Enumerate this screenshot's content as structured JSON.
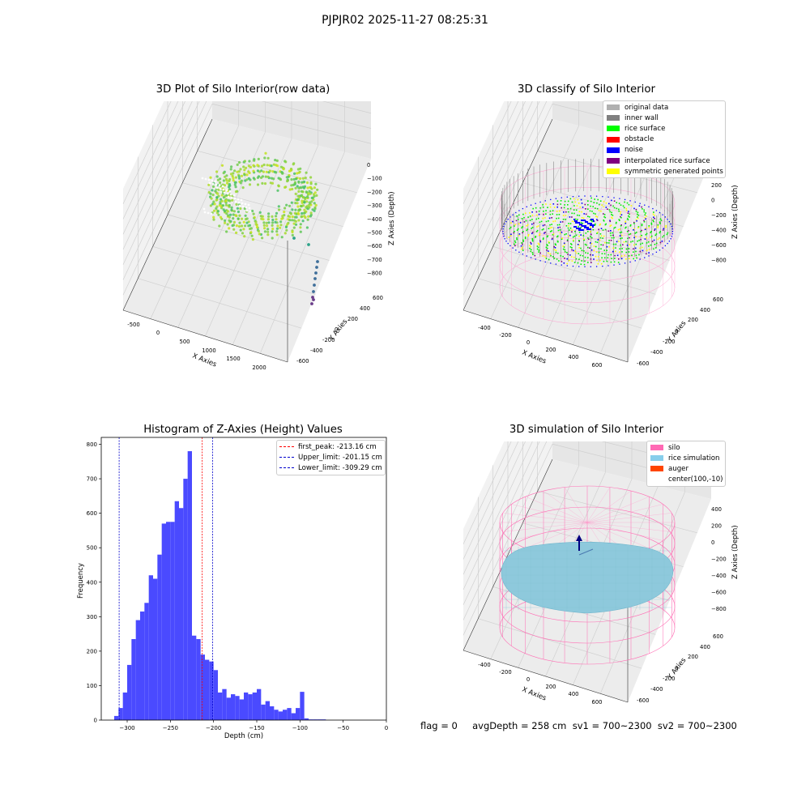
{
  "figure": {
    "suptitle": "PJPJR02 2025-11-27 08:25:31",
    "footer": "flag = 0     avgDepth = 258 cm  sv1 = 700~2300  sv2 = 700~2300"
  },
  "panels": {
    "raw": {
      "title": "3D Plot of Silo Interior(row data)",
      "xlabel": "X Axies",
      "ylabel": "Y Axies",
      "zlabel": "Z Axies (Depth)",
      "x_ticks": [
        "-500",
        "0",
        "500",
        "1000",
        "1500",
        "2000"
      ],
      "y_ticks": [
        "-600",
        "-400",
        "-200",
        "0",
        "200",
        "400",
        "600"
      ],
      "z_ticks": [
        "0",
        "−100",
        "−200",
        "−300",
        "−400",
        "−500",
        "−600",
        "−700",
        "−800"
      ]
    },
    "classify": {
      "title": "3D classify of Silo Interior",
      "xlabel": "X Axies",
      "ylabel": "Y Axies",
      "zlabel": "Z Axies (Depth)",
      "x_ticks": [
        "-400",
        "-200",
        "0",
        "200",
        "400",
        "600"
      ],
      "y_ticks": [
        "-600",
        "-400",
        "-200",
        "0",
        "200",
        "400",
        "600"
      ],
      "z_ticks": [
        "200",
        "0",
        "−200",
        "−400",
        "−600",
        "−800"
      ],
      "legend": [
        {
          "label": "original data",
          "color": "#b0b0b0"
        },
        {
          "label": "inner wall",
          "color": "#808080"
        },
        {
          "label": "rice surface",
          "color": "#00ff00"
        },
        {
          "label": "obstacle",
          "color": "#ff0000"
        },
        {
          "label": "noise",
          "color": "#0000ff"
        },
        {
          "label": "interpolated rice surface",
          "color": "#800080"
        },
        {
          "label": "symmetric generated points",
          "color": "#ffff00"
        }
      ]
    },
    "histogram": {
      "title": "Histogram of Z-Axies (Height) Values",
      "legend": [
        {
          "label": "first_peak: -213.16 cm",
          "color": "#ff0000"
        },
        {
          "label": "Upper_limit: -201.15 cm",
          "color": "#0000cc"
        },
        {
          "label": "Lower_limit: -309.29 cm",
          "color": "#0000cc"
        }
      ]
    },
    "simulation": {
      "title": "3D simulation of Silo Interior",
      "xlabel": "X Axies",
      "ylabel": "Y Axies",
      "zlabel": "Z Axies (Depth)",
      "x_ticks": [
        "-400",
        "-200",
        "0",
        "200",
        "400",
        "600"
      ],
      "y_ticks": [
        "-600",
        "-400",
        "-200",
        "0",
        "200",
        "400",
        "600"
      ],
      "z_ticks": [
        "400",
        "200",
        "0",
        "−200",
        "−400",
        "−600",
        "−800"
      ],
      "legend": [
        {
          "label": "silo",
          "color": "#ff69b4"
        },
        {
          "label": "rice simulation",
          "color": "#87ceeb"
        },
        {
          "label": "auger",
          "color": "#ff4500"
        },
        {
          "label": "center(100,-10)",
          "color": ""
        }
      ]
    }
  },
  "chart_data": {
    "type": "bar",
    "title": "Histogram of Z-Axies (Height) Values",
    "xlabel": "Depth (cm)",
    "ylabel": "Frequency",
    "xlim": [
      -330,
      0
    ],
    "ylim": [
      0,
      820
    ],
    "x_ticks": [
      -300,
      -250,
      -200,
      -150,
      -100,
      -50,
      0
    ],
    "y_ticks": [
      0,
      100,
      200,
      300,
      400,
      500,
      600,
      700,
      800
    ],
    "bin_width": 5,
    "bin_starts": [
      -315,
      -310,
      -305,
      -300,
      -295,
      -290,
      -285,
      -280,
      -275,
      -270,
      -265,
      -260,
      -255,
      -250,
      -245,
      -240,
      -235,
      -230,
      -225,
      -220,
      -215,
      -210,
      -205,
      -200,
      -195,
      -190,
      -185,
      -180,
      -175,
      -170,
      -165,
      -160,
      -155,
      -150,
      -145,
      -140,
      -135,
      -130,
      -125,
      -120,
      -115,
      -110,
      -105,
      -100,
      -95,
      -90,
      -85,
      -80,
      -75,
      -70,
      -65,
      -60,
      -55,
      -50,
      -45,
      -40,
      -35,
      -30,
      -25,
      -20
    ],
    "values": [
      12,
      35,
      80,
      160,
      235,
      290,
      315,
      340,
      420,
      410,
      480,
      570,
      575,
      575,
      635,
      615,
      700,
      780,
      245,
      235,
      190,
      175,
      170,
      145,
      80,
      90,
      65,
      75,
      70,
      60,
      80,
      75,
      80,
      90,
      45,
      55,
      40,
      30,
      25,
      30,
      35,
      20,
      35,
      82,
      5,
      2,
      2,
      2,
      2,
      0,
      0,
      0,
      0,
      0,
      0,
      0,
      0,
      0,
      0,
      0
    ],
    "bar_color": "#4a4aff",
    "vlines": [
      {
        "x": -213.16,
        "color": "#ff0000",
        "label": "first_peak: -213.16 cm"
      },
      {
        "x": -201.15,
        "color": "#0000cc",
        "label": "Upper_limit: -201.15 cm"
      },
      {
        "x": -309.29,
        "color": "#0000cc",
        "label": "Lower_limit: -309.29 cm"
      }
    ],
    "legend_position": "upper right",
    "grid": false
  }
}
